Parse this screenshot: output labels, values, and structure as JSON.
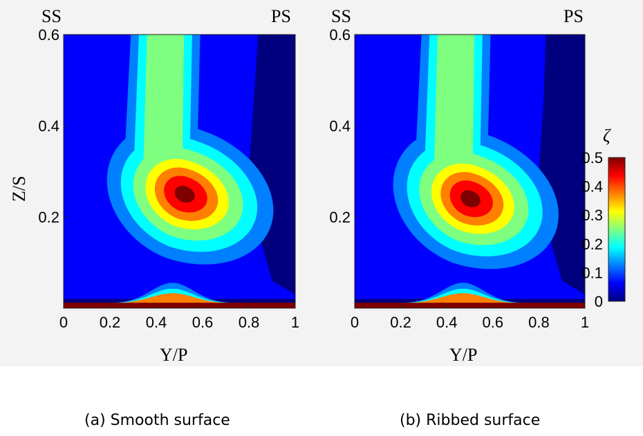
{
  "colors": {
    "colormap": [
      "#00007f",
      "#0000ff",
      "#007fff",
      "#00ffff",
      "#7fff7f",
      "#ffff00",
      "#ff7f00",
      "#ff0000",
      "#7f0000"
    ],
    "background": "#f3f3f3"
  },
  "chart_data": [
    {
      "type": "heatmap",
      "caption": "(a) Smooth surface",
      "xlabel": "Y/P",
      "ylabel": "Z/S",
      "corner_left": "SS",
      "corner_right": "PS",
      "xlim": [
        0,
        1
      ],
      "ylim": [
        0,
        0.6
      ],
      "xticks": [
        "0",
        "0.2",
        "0.4",
        "0.6",
        "0.8",
        "1"
      ],
      "yticks": [
        "0.2",
        "0.4",
        "0.6"
      ],
      "peak": {
        "y_p": 0.52,
        "z_s": 0.25,
        "zeta": 0.48
      },
      "wall_layer": {
        "z_s_top": 0.012,
        "zeta": 0.5
      }
    },
    {
      "type": "heatmap",
      "caption": "(b) Ribbed surface",
      "xlabel": "Y/P",
      "ylabel": "",
      "corner_left": "SS",
      "corner_right": "PS",
      "xlim": [
        0,
        1
      ],
      "ylim": [
        0,
        0.6
      ],
      "xticks": [
        "0",
        "0.2",
        "0.4",
        "0.6",
        "0.8",
        "1"
      ],
      "yticks": [
        "0.2",
        "0.4",
        "0.6"
      ],
      "peak": {
        "y_p": 0.5,
        "z_s": 0.24,
        "zeta": 0.46
      },
      "wall_layer": {
        "z_s_top": 0.012,
        "zeta": 0.5
      }
    }
  ],
  "colorbar": {
    "label": "ζ",
    "min": 0,
    "max": 0.5,
    "ticks": [
      "0",
      "0.1",
      "0.2",
      "0.3",
      "0.4",
      "0.5"
    ]
  }
}
